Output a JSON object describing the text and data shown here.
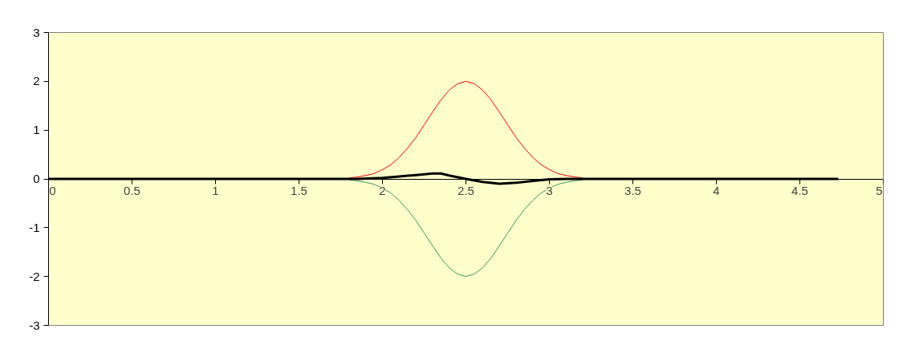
{
  "chart_data": {
    "type": "line",
    "xlim": [
      0,
      5
    ],
    "ylim": [
      -3,
      3
    ],
    "xticks": [
      0,
      0.5,
      1,
      1.5,
      2,
      2.5,
      3,
      3.5,
      4,
      4.5,
      5
    ],
    "yticks": [
      -3,
      -2,
      -1,
      0,
      1,
      2,
      3
    ],
    "grid": false,
    "marker": "none",
    "line_style": "solid",
    "series": [
      {
        "color": "#ff0000",
        "x": [
          1.8,
          1.85,
          1.9,
          1.95,
          2.0,
          2.05,
          2.1,
          2.15,
          2.2,
          2.25,
          2.3,
          2.35,
          2.4,
          2.45,
          2.5,
          2.55,
          2.6,
          2.65,
          2.7,
          2.75,
          2.8,
          2.85,
          2.9,
          2.95,
          3.0,
          3.05,
          3.1,
          3.15,
          3.2
        ],
        "values": [
          0.02,
          0.04,
          0.07,
          0.11,
          0.19,
          0.29,
          0.44,
          0.63,
          0.85,
          1.11,
          1.37,
          1.62,
          1.82,
          1.95,
          2,
          1.95,
          1.82,
          1.62,
          1.37,
          1.11,
          0.85,
          0.63,
          0.44,
          0.29,
          0.19,
          0.11,
          0.07,
          0.04,
          0.02
        ]
      },
      {
        "color": "#339966",
        "x": [
          1.8,
          1.85,
          1.9,
          1.95,
          2.0,
          2.05,
          2.1,
          2.15,
          2.2,
          2.25,
          2.3,
          2.35,
          2.4,
          2.45,
          2.5,
          2.55,
          2.6,
          2.65,
          2.7,
          2.75,
          2.8,
          2.85,
          2.9,
          2.95,
          3.0,
          3.05,
          3.1,
          3.15,
          3.2
        ],
        "values": [
          -0.02,
          -0.04,
          -0.07,
          -0.11,
          -0.19,
          -0.29,
          -0.44,
          -0.63,
          -0.85,
          -1.11,
          -1.37,
          -1.62,
          -1.82,
          -1.95,
          -2,
          -1.95,
          -1.82,
          -1.62,
          -1.37,
          -1.11,
          -0.85,
          -0.63,
          -0.44,
          -0.29,
          -0.19,
          -0.11,
          -0.07,
          -0.04,
          -0.02
        ]
      },
      {
        "color": "#000000",
        "x": [
          0,
          1.85,
          2.0,
          2.1,
          2.2,
          2.3,
          2.35,
          2.4,
          2.5,
          2.6,
          2.7,
          2.8,
          2.9,
          3.0,
          3.1,
          4.73
        ],
        "values": [
          0,
          0,
          0.02,
          0.05,
          0.08,
          0.11,
          0.11,
          0.07,
          0,
          -0.06,
          -0.1,
          -0.08,
          -0.04,
          -0.01,
          0,
          0
        ]
      }
    ]
  }
}
